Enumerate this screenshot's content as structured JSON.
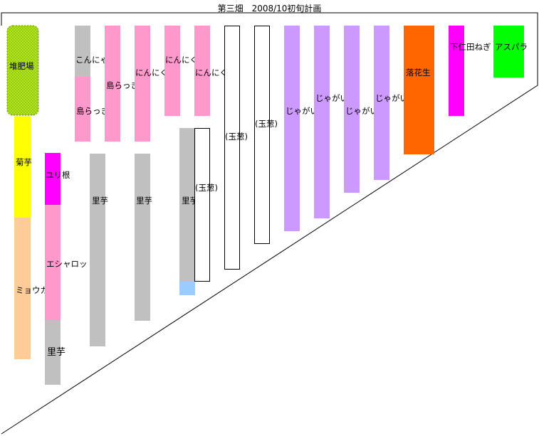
{
  "title": "第三畑　2008/10初旬計画",
  "colors": {
    "grey": "#c0c0c0",
    "pink": "#ff99cc",
    "purple": "#cc99ff",
    "orange": "#ff6600",
    "magenta": "#ff00ff",
    "green": "#00ff00",
    "olive": "#99cc00",
    "yellow": "#ffff00",
    "peach": "#ffcc99",
    "lightblue": "#99ccff",
    "white": "#ffffff"
  },
  "plots": {
    "compost": "堆肥場",
    "kikuimo": "菊芋",
    "myoga": "ミョウガ",
    "yurine": "ユリ根",
    "shallot": "エシャロット",
    "satoimo_a": "里芋",
    "satoimo_b": "里芋",
    "satoimo_c": "里芋",
    "satoimo_d": "里芋",
    "konnyaku": "こんにゃく",
    "shimarakkyo_a": "島らっきょ",
    "shimarakkyo_b": "島らっきょ",
    "ninniku_a": "にんにく",
    "ninniku_b": "にんにく",
    "ninniku_c": "にんにく",
    "tamanegi_a": "(玉葱)",
    "tamanegi_b": "(玉葱)",
    "tamanegi_c": "(玉葱)",
    "jagaimo_a": "じゃがいも",
    "jagaimo_b": "じゃがいも",
    "jagaimo_c": "じゃがいも",
    "jagaimo_d": "じゃがいも",
    "rakkasei": "落花生",
    "shimonita": "下仁田ねぎ",
    "asupara": "アスパラ"
  }
}
